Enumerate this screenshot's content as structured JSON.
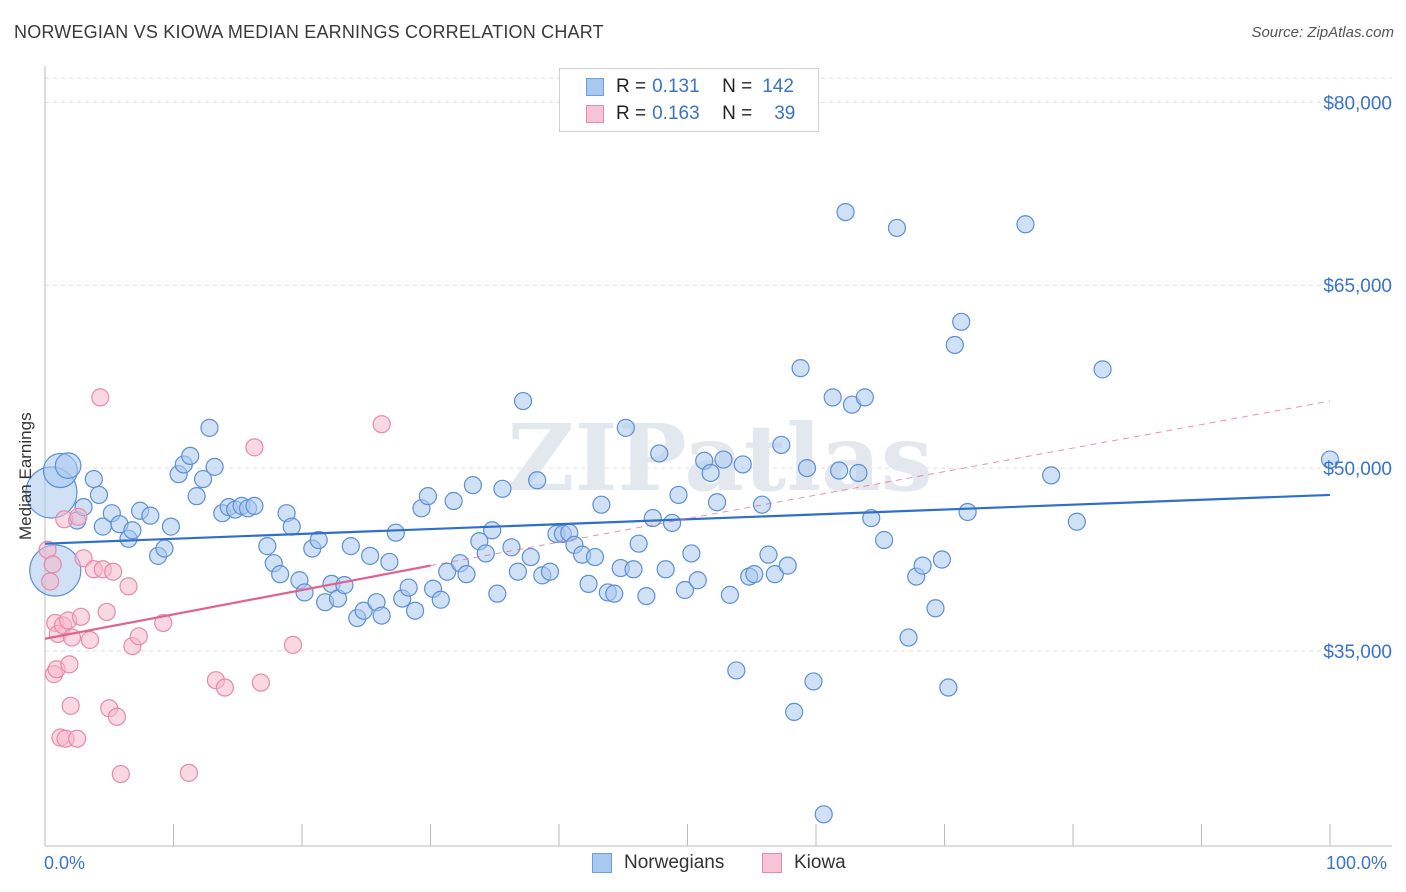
{
  "header": {
    "title": "NORWEGIAN VS KIOWA MEDIAN EARNINGS CORRELATION CHART",
    "source": "Source: ZipAtlas.com"
  },
  "legend": {
    "rows": [
      {
        "r_label": "R =",
        "r_value": "0.131",
        "n_label": "N =",
        "n_value": "142",
        "color": "#a9c8ee",
        "border": "#6a9fe0"
      },
      {
        "r_label": "R =",
        "r_value": "0.163",
        "n_label": "N =",
        "n_value": "39",
        "color": "#f6b8cb",
        "border": "#e88aa8"
      }
    ]
  },
  "bottom_legend": {
    "norwegians": "Norwegians",
    "kiowa": "Kiowa"
  },
  "watermark": "ZIPatlas",
  "colors": {
    "blue_fill": "#a9c8ee",
    "blue_stroke": "#5b8fd6",
    "blue_line": "#2f6fcc",
    "pink_fill": "#f6b8cb",
    "pink_stroke": "#e78aa8",
    "pink_line": "#e0628e",
    "grid": "#dddddd",
    "axis_text": "#3a73c9"
  },
  "chart_data": {
    "type": "scatter",
    "title": "NORWEGIAN VS KIOWA MEDIAN EARNINGS CORRELATION CHART",
    "ylabel": "Median Earnings",
    "xlabel": "",
    "x_tick_labels": [
      "0.0%",
      "100.0%"
    ],
    "y_tick_labels": [
      "$80,000",
      "$65,000",
      "$50,000",
      "$35,000"
    ],
    "y_ticks": [
      80000,
      65000,
      50000,
      35000
    ],
    "xlim": [
      0,
      100
    ],
    "ylim": [
      19000,
      82000
    ],
    "grid": true,
    "series": [
      {
        "name": "Norwegians",
        "r": 0.131,
        "n": 142,
        "trend": {
          "x0": 0,
          "y0": 43800,
          "x1": 100,
          "y1": 47800
        },
        "points": [
          [
            0.5,
            48000,
            3
          ],
          [
            0.8,
            41600,
            3
          ],
          [
            1.2,
            49800,
            2
          ],
          [
            1.8,
            50200,
            1.5
          ],
          [
            2.5,
            45700,
            1
          ],
          [
            3,
            46800,
            1
          ],
          [
            3.8,
            49100,
            1
          ],
          [
            4.2,
            47800,
            1
          ],
          [
            4.5,
            45200,
            1
          ],
          [
            5.2,
            46300,
            1
          ],
          [
            5.8,
            45400,
            1
          ],
          [
            6.5,
            44200,
            1
          ],
          [
            6.8,
            44900,
            1
          ],
          [
            7.4,
            46500,
            1
          ],
          [
            8.2,
            46100,
            1
          ],
          [
            8.8,
            42800,
            1
          ],
          [
            9.3,
            43400,
            1
          ],
          [
            9.8,
            45200,
            1
          ],
          [
            10.4,
            49500,
            1
          ],
          [
            10.8,
            50300,
            1
          ],
          [
            11.3,
            51000,
            1
          ],
          [
            11.8,
            47700,
            1
          ],
          [
            12.3,
            49100,
            1
          ],
          [
            12.8,
            53300,
            1
          ],
          [
            13.2,
            50100,
            1
          ],
          [
            13.8,
            46300,
            1
          ],
          [
            14.3,
            46800,
            1
          ],
          [
            14.8,
            46600,
            1
          ],
          [
            15.3,
            46900,
            1
          ],
          [
            15.8,
            46700,
            1
          ],
          [
            16.3,
            46900,
            1
          ],
          [
            17.3,
            43600,
            1
          ],
          [
            17.8,
            42200,
            1
          ],
          [
            18.3,
            41300,
            1
          ],
          [
            18.8,
            46300,
            1
          ],
          [
            19.2,
            45200,
            1
          ],
          [
            19.8,
            40800,
            1
          ],
          [
            20.2,
            39800,
            1
          ],
          [
            20.8,
            43400,
            1
          ],
          [
            21.3,
            44100,
            1
          ],
          [
            21.8,
            39000,
            1
          ],
          [
            22.3,
            40500,
            1
          ],
          [
            22.8,
            39300,
            1
          ],
          [
            23.3,
            40400,
            1
          ],
          [
            23.8,
            43600,
            1
          ],
          [
            24.3,
            37700,
            1
          ],
          [
            24.8,
            38300,
            1
          ],
          [
            25.3,
            42800,
            1
          ],
          [
            25.8,
            39000,
            1
          ],
          [
            26.2,
            37900,
            1
          ],
          [
            26.8,
            42300,
            1
          ],
          [
            27.3,
            44700,
            1
          ],
          [
            27.8,
            39300,
            1
          ],
          [
            28.3,
            40200,
            1
          ],
          [
            28.8,
            38300,
            1
          ],
          [
            29.3,
            46700,
            1
          ],
          [
            29.8,
            47700,
            1
          ],
          [
            30.2,
            40100,
            1
          ],
          [
            30.8,
            39200,
            1
          ],
          [
            31.3,
            41500,
            1
          ],
          [
            31.8,
            47300,
            1
          ],
          [
            32.3,
            42200,
            1
          ],
          [
            32.8,
            41300,
            1
          ],
          [
            33.3,
            48600,
            1
          ],
          [
            33.8,
            44000,
            1
          ],
          [
            34.3,
            43000,
            1
          ],
          [
            34.8,
            44900,
            1
          ],
          [
            35.2,
            39700,
            1
          ],
          [
            35.6,
            48300,
            1
          ],
          [
            36.3,
            43500,
            1
          ],
          [
            36.8,
            41500,
            1
          ],
          [
            37.2,
            55500,
            1
          ],
          [
            37.8,
            42700,
            1
          ],
          [
            38.3,
            49000,
            1
          ],
          [
            38.7,
            41200,
            1
          ],
          [
            39.3,
            41500,
            1
          ],
          [
            39.8,
            44600,
            1
          ],
          [
            40.3,
            44600,
            1
          ],
          [
            40.8,
            44700,
            1
          ],
          [
            41.2,
            43700,
            1
          ],
          [
            41.8,
            42900,
            1
          ],
          [
            42.3,
            40500,
            1
          ],
          [
            42.8,
            42700,
            1
          ],
          [
            43.3,
            47000,
            1
          ],
          [
            43.8,
            39800,
            1
          ],
          [
            44.3,
            39700,
            1
          ],
          [
            44.8,
            41800,
            1
          ],
          [
            45.2,
            53300,
            1
          ],
          [
            45.8,
            41700,
            1
          ],
          [
            46.2,
            43800,
            1
          ],
          [
            46.8,
            39500,
            1
          ],
          [
            47.3,
            45900,
            1
          ],
          [
            47.8,
            51200,
            1
          ],
          [
            48.3,
            41700,
            1
          ],
          [
            48.8,
            45500,
            1
          ],
          [
            49.3,
            47800,
            1
          ],
          [
            49.8,
            40000,
            1
          ],
          [
            50.3,
            43000,
            1
          ],
          [
            50.8,
            40800,
            1
          ],
          [
            51.3,
            50600,
            1
          ],
          [
            51.8,
            49600,
            1
          ],
          [
            52.3,
            47200,
            1
          ],
          [
            52.8,
            50700,
            1
          ],
          [
            53.3,
            39600,
            1
          ],
          [
            53.8,
            33400,
            1
          ],
          [
            54.3,
            50300,
            1
          ],
          [
            54.8,
            41100,
            1
          ],
          [
            55.2,
            41300,
            1
          ],
          [
            55.8,
            47000,
            1
          ],
          [
            56.3,
            42900,
            1
          ],
          [
            56.8,
            41300,
            1
          ],
          [
            57.3,
            51900,
            1
          ],
          [
            57.8,
            42000,
            1
          ],
          [
            58.3,
            30000,
            1
          ],
          [
            58.8,
            58200,
            1
          ],
          [
            59.3,
            50000,
            1
          ],
          [
            59.8,
            32500,
            1
          ],
          [
            60.6,
            21600,
            1
          ],
          [
            61.3,
            55800,
            1
          ],
          [
            61.8,
            49800,
            1
          ],
          [
            62.3,
            71000,
            1
          ],
          [
            62.8,
            55200,
            1
          ],
          [
            63.3,
            49600,
            1
          ],
          [
            63.8,
            55800,
            1
          ],
          [
            64.3,
            45900,
            1
          ],
          [
            65.3,
            44100,
            1
          ],
          [
            66.3,
            69700,
            1
          ],
          [
            67.2,
            36100,
            1
          ],
          [
            67.8,
            41100,
            1
          ],
          [
            68.3,
            42000,
            1
          ],
          [
            69.3,
            38500,
            1
          ],
          [
            69.8,
            42500,
            1
          ],
          [
            70.3,
            32000,
            1
          ],
          [
            70.8,
            60100,
            1
          ],
          [
            71.3,
            62000,
            1
          ],
          [
            71.8,
            46400,
            1
          ],
          [
            76.3,
            70000,
            1
          ],
          [
            78.3,
            49400,
            1
          ],
          [
            80.3,
            45600,
            1
          ],
          [
            82.3,
            58100,
            1
          ],
          [
            100,
            50700,
            1
          ]
        ]
      },
      {
        "name": "Kiowa",
        "r": 0.163,
        "n": 39,
        "trend": {
          "x0": 0,
          "y0": 36000,
          "x1": 30,
          "y1": 42000,
          "dash_x1": 100,
          "dash_y1": 55500
        },
        "points": [
          [
            0.2,
            43300,
            1
          ],
          [
            0.4,
            40700,
            1
          ],
          [
            0.6,
            42100,
            1
          ],
          [
            0.7,
            33100,
            1
          ],
          [
            0.8,
            37300,
            1
          ],
          [
            0.9,
            33500,
            1
          ],
          [
            1.0,
            36400,
            1
          ],
          [
            1.2,
            27900,
            1
          ],
          [
            1.4,
            37100,
            1
          ],
          [
            1.5,
            45800,
            1
          ],
          [
            1.6,
            27800,
            1
          ],
          [
            1.8,
            37500,
            1
          ],
          [
            1.9,
            33900,
            1
          ],
          [
            2.0,
            30500,
            1
          ],
          [
            2.1,
            36100,
            1
          ],
          [
            2.5,
            27800,
            1
          ],
          [
            2.6,
            46000,
            1
          ],
          [
            2.8,
            37800,
            1
          ],
          [
            3.0,
            42600,
            1
          ],
          [
            3.5,
            35900,
            1
          ],
          [
            3.8,
            41700,
            1
          ],
          [
            4.3,
            55800,
            1
          ],
          [
            4.5,
            41700,
            1
          ],
          [
            4.8,
            38200,
            1
          ],
          [
            5.0,
            30300,
            1
          ],
          [
            5.3,
            41500,
            1
          ],
          [
            5.6,
            29600,
            1
          ],
          [
            5.9,
            24900,
            1
          ],
          [
            6.5,
            40300,
            1
          ],
          [
            6.8,
            35400,
            1
          ],
          [
            7.3,
            36200,
            1
          ],
          [
            9.2,
            37300,
            1
          ],
          [
            11.2,
            25000,
            1
          ],
          [
            13.3,
            32600,
            1
          ],
          [
            14.0,
            32000,
            1
          ],
          [
            16.3,
            51700,
            1
          ],
          [
            16.8,
            32400,
            1
          ],
          [
            19.3,
            35500,
            1
          ],
          [
            26.2,
            53600,
            1
          ]
        ]
      }
    ]
  }
}
